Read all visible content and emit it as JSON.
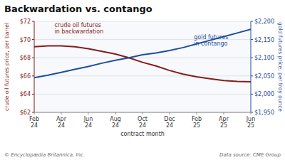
{
  "chart_data": {
    "type": "line",
    "title": "Backwardation vs. contango",
    "xlabel": "contract month",
    "ylabel": "crude oil futures price, per barrel",
    "y2label": "gold futures price, per troy ounce",
    "categories": [
      "Feb\n24",
      null,
      "Apr\n24",
      null,
      "Jun\n24",
      null,
      "Aug\n24",
      null,
      "Oct\n24",
      null,
      "Dec\n24",
      null,
      "Feb\n25",
      null,
      "Apr\n25",
      null,
      "Jun\n25"
    ],
    "series": [
      {
        "color": "#8B1A1A",
        "values": [
          69.2,
          69.3,
          69.3,
          69.2,
          69.0,
          68.7,
          68.4,
          68.0,
          67.5,
          67.1,
          66.6,
          66.2,
          65.9,
          65.7,
          65.5,
          65.4,
          65.35
        ]
      },
      {
        "color": "#1F4E9E",
        "axis": "y2",
        "values": [
          2045,
          2052,
          2060,
          2068,
          2076,
          2085,
          2093,
          2100,
          2108,
          2113,
          2120,
          2128,
          2138,
          2148,
          2158,
          2168,
          2178
        ]
      }
    ],
    "ylim": [
      62,
      72
    ],
    "yticks": [
      {
        "value": 62,
        "label": "$62"
      },
      {
        "value": 64,
        "label": "$64"
      },
      {
        "value": 66,
        "label": "$66"
      },
      {
        "value": 68,
        "label": "$68"
      },
      {
        "value": 70,
        "label": "$70"
      },
      {
        "value": 72,
        "label": "$72"
      }
    ],
    "y2lim": [
      1950,
      2200
    ],
    "y2ticks": [
      {
        "value": 1950,
        "label": "$1,950"
      },
      {
        "value": 2000,
        "label": "$2,000"
      },
      {
        "value": 2050,
        "label": "$2,050"
      },
      {
        "value": 2100,
        "label": "$2,100"
      },
      {
        "value": 2150,
        "label": "$2,150"
      },
      {
        "value": 2200,
        "label": "$2,200"
      }
    ],
    "grid": true,
    "annotations": [
      {
        "text": "crude oil futures\nin backwardation",
        "x": 1.5,
        "y": 70.5
      },
      {
        "text": "gold futures\nin contango",
        "x": 11.8,
        "y": 2130,
        "axis": "y2"
      }
    ],
    "copyright": "© Encyclopædia Britannica, Inc.",
    "source": "Data source: CME Group"
  }
}
